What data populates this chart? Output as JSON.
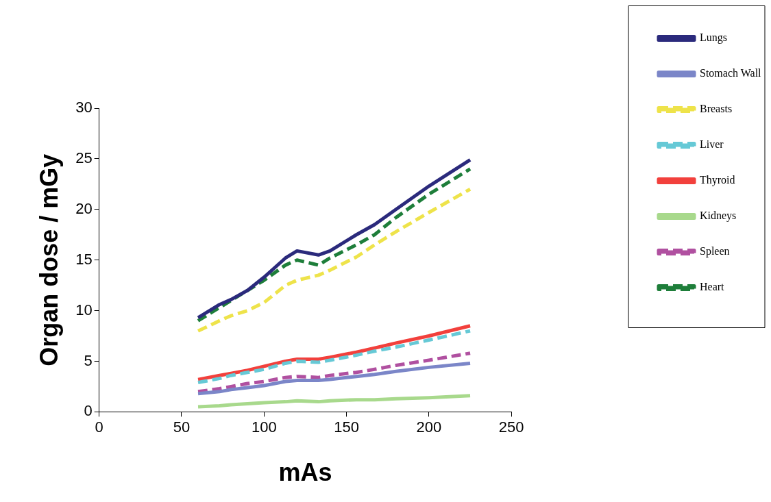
{
  "chart_data": {
    "type": "line",
    "xlabel": "mAs",
    "ylabel": "Organ dose / mGy",
    "x": [
      60,
      73,
      80,
      90,
      100,
      113,
      120,
      133,
      140,
      156,
      167,
      180,
      200,
      225
    ],
    "xlim": [
      0,
      250
    ],
    "xticks": [
      0,
      50,
      100,
      150,
      200,
      250
    ],
    "ylim": [
      0,
      30
    ],
    "yticks": [
      0,
      5,
      10,
      15,
      20,
      25,
      30
    ],
    "grid": false,
    "legend": "top right",
    "marker": "none",
    "series": [
      {
        "name": "Lungs",
        "color": "#2b2a7c",
        "line_style": "solid",
        "values": [
          9.3,
          10.6,
          11.1,
          12.0,
          13.3,
          15.2,
          15.9,
          15.5,
          15.9,
          17.5,
          18.5,
          20.0,
          22.3,
          24.9
        ]
      },
      {
        "name": "Stomach Wall",
        "color": "#7b86c8",
        "line_style": "solid",
        "values": [
          1.8,
          2.0,
          2.2,
          2.4,
          2.6,
          3.0,
          3.1,
          3.1,
          3.2,
          3.5,
          3.7,
          4.0,
          4.4,
          4.8
        ]
      },
      {
        "name": "Breasts",
        "color": "#eee34a",
        "line_style": "dashed",
        "values": [
          8.0,
          9.0,
          9.5,
          10.0,
          10.8,
          12.5,
          13.0,
          13.5,
          14.0,
          15.3,
          16.5,
          17.8,
          19.7,
          22.0
        ]
      },
      {
        "name": "Liver",
        "color": "#66c9d6",
        "line_style": "dashed",
        "values": [
          2.9,
          3.3,
          3.6,
          3.9,
          4.2,
          4.8,
          5.0,
          4.9,
          5.1,
          5.6,
          6.0,
          6.4,
          7.1,
          8.0
        ]
      },
      {
        "name": "Thyroid",
        "color": "#f2403c",
        "line_style": "solid",
        "values": [
          3.2,
          3.6,
          3.8,
          4.1,
          4.5,
          5.0,
          5.2,
          5.2,
          5.4,
          5.9,
          6.3,
          6.8,
          7.5,
          8.5
        ]
      },
      {
        "name": "Kidneys",
        "color": "#a8d98c",
        "line_style": "solid",
        "values": [
          0.5,
          0.6,
          0.7,
          0.8,
          0.9,
          1.0,
          1.1,
          1.0,
          1.1,
          1.2,
          1.2,
          1.3,
          1.4,
          1.6
        ]
      },
      {
        "name": "Spleen",
        "color": "#b050a0",
        "line_style": "dashed",
        "values": [
          2.0,
          2.3,
          2.5,
          2.8,
          3.0,
          3.4,
          3.5,
          3.4,
          3.6,
          3.9,
          4.2,
          4.6,
          5.1,
          5.8
        ]
      },
      {
        "name": "Heart",
        "color": "#1e7e3a",
        "line_style": "dashed",
        "values": [
          9.0,
          10.3,
          11.0,
          12.0,
          13.0,
          14.5,
          15.0,
          14.5,
          15.2,
          16.5,
          17.5,
          19.2,
          21.5,
          24.0
        ]
      }
    ]
  }
}
